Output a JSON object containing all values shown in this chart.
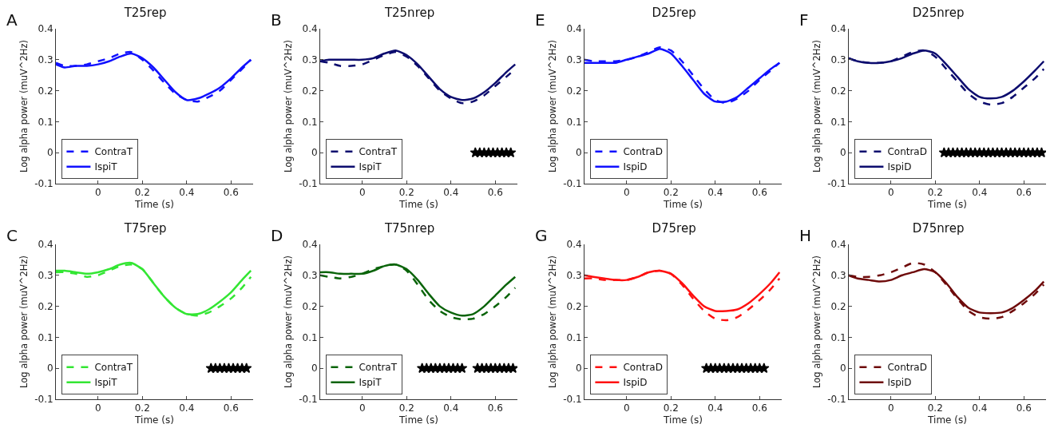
{
  "chart_data": [
    {
      "type": "line",
      "title": "T25rep",
      "annotations": [
        "A"
      ],
      "xlabel": "Time (s)",
      "ylabel": "Log alpha power (muV^2Hz)",
      "xlim": [
        -0.19,
        0.7
      ],
      "xticks": [
        0,
        0.2,
        0.4,
        0.6
      ],
      "ylim": [
        -0.1,
        0.4
      ],
      "yticks": [
        -0.1,
        0,
        0.1,
        0.2,
        0.3,
        0.4
      ],
      "legend": "bottom left",
      "x": [
        -0.19,
        -0.15,
        -0.1,
        -0.05,
        0,
        0.05,
        0.1,
        0.15,
        0.2,
        0.25,
        0.3,
        0.35,
        0.4,
        0.45,
        0.5,
        0.55,
        0.6,
        0.65,
        0.69
      ],
      "series": [
        {
          "name": "ContraT",
          "color": "#1010ff",
          "line_style": "dashed",
          "values": [
            0.29,
            0.28,
            0.28,
            0.285,
            0.295,
            0.305,
            0.32,
            0.325,
            0.3,
            0.265,
            0.225,
            0.19,
            0.17,
            0.165,
            0.18,
            0.2,
            0.235,
            0.27,
            0.3
          ]
        },
        {
          "name": "IspiT",
          "color": "#1010ff",
          "line_style": "solid",
          "values": [
            0.285,
            0.275,
            0.28,
            0.28,
            0.285,
            0.295,
            0.31,
            0.32,
            0.305,
            0.275,
            0.235,
            0.195,
            0.17,
            0.175,
            0.19,
            0.21,
            0.24,
            0.275,
            0.3
          ]
        }
      ]
    },
    {
      "type": "line",
      "title": "T25nrep",
      "annotations": [
        "B"
      ],
      "xlabel": "Time (s)",
      "ylabel": "Log alpha power (muV^2Hz)",
      "xlim": [
        -0.19,
        0.7
      ],
      "xticks": [
        0,
        0.2,
        0.4,
        0.6
      ],
      "ylim": [
        -0.1,
        0.4
      ],
      "yticks": [
        -0.1,
        0,
        0.1,
        0.2,
        0.3,
        0.4
      ],
      "legend": "bottom left",
      "x": [
        -0.19,
        -0.15,
        -0.1,
        -0.05,
        0,
        0.05,
        0.1,
        0.15,
        0.2,
        0.25,
        0.3,
        0.35,
        0.4,
        0.45,
        0.5,
        0.55,
        0.6,
        0.65,
        0.69
      ],
      "series": [
        {
          "name": "ContraT",
          "color": "#0c0c6e",
          "line_style": "dashed",
          "values": [
            0.295,
            0.29,
            0.28,
            0.28,
            0.285,
            0.3,
            0.315,
            0.325,
            0.31,
            0.28,
            0.24,
            0.2,
            0.175,
            0.16,
            0.165,
            0.185,
            0.215,
            0.245,
            0.27
          ]
        },
        {
          "name": "IspiT",
          "color": "#0c0c6e",
          "line_style": "solid",
          "values": [
            0.295,
            0.3,
            0.3,
            0.3,
            0.3,
            0.305,
            0.32,
            0.33,
            0.315,
            0.285,
            0.245,
            0.205,
            0.18,
            0.17,
            0.175,
            0.195,
            0.225,
            0.26,
            0.285
          ]
        },
        {
          "type": "scatter",
          "marker": "star",
          "color": "#000000",
          "x": [
            0.51,
            0.53,
            0.55,
            0.57,
            0.59,
            0.61,
            0.63,
            0.65,
            0.67
          ],
          "values": [
            0,
            0,
            0,
            0,
            0,
            0,
            0,
            0,
            0
          ]
        }
      ]
    },
    {
      "type": "line",
      "title": "D25rep",
      "annotations": [
        "E"
      ],
      "xlabel": "Time (s)",
      "ylabel": "Log alpha power (muV^2Hz)",
      "xlim": [
        -0.19,
        0.7
      ],
      "xticks": [
        0,
        0.2,
        0.4,
        0.6
      ],
      "ylim": [
        -0.1,
        0.4
      ],
      "yticks": [
        -0.1,
        0,
        0.1,
        0.2,
        0.3,
        0.4
      ],
      "legend": "bottom left",
      "x": [
        -0.19,
        -0.15,
        -0.1,
        -0.05,
        0,
        0.05,
        0.1,
        0.15,
        0.2,
        0.25,
        0.3,
        0.35,
        0.4,
        0.45,
        0.5,
        0.55,
        0.6,
        0.65,
        0.69
      ],
      "series": [
        {
          "name": "ContraD",
          "color": "#1010ff",
          "line_style": "dashed",
          "values": [
            0.3,
            0.295,
            0.295,
            0.295,
            0.3,
            0.31,
            0.325,
            0.34,
            0.33,
            0.295,
            0.25,
            0.205,
            0.17,
            0.16,
            0.175,
            0.2,
            0.235,
            0.265,
            0.29
          ]
        },
        {
          "name": "IspiD",
          "color": "#1010ff",
          "line_style": "solid",
          "values": [
            0.29,
            0.29,
            0.29,
            0.29,
            0.3,
            0.31,
            0.32,
            0.335,
            0.32,
            0.28,
            0.235,
            0.19,
            0.165,
            0.165,
            0.18,
            0.21,
            0.24,
            0.27,
            0.29
          ]
        }
      ]
    },
    {
      "type": "line",
      "title": "D25nrep",
      "annotations": [
        "F"
      ],
      "xlabel": "Time (s)",
      "ylabel": "Log alpha power (muV^2Hz)",
      "xlim": [
        -0.19,
        0.7
      ],
      "xticks": [
        0,
        0.2,
        0.4,
        0.6
      ],
      "ylim": [
        -0.1,
        0.4
      ],
      "yticks": [
        -0.1,
        0,
        0.1,
        0.2,
        0.3,
        0.4
      ],
      "legend": "bottom left",
      "x": [
        -0.19,
        -0.15,
        -0.1,
        -0.05,
        0,
        0.05,
        0.1,
        0.15,
        0.2,
        0.25,
        0.3,
        0.35,
        0.4,
        0.45,
        0.5,
        0.55,
        0.6,
        0.65,
        0.69
      ],
      "series": [
        {
          "name": "ContraD",
          "color": "#0c0c6e",
          "line_style": "dashed",
          "values": [
            0.305,
            0.295,
            0.29,
            0.29,
            0.295,
            0.31,
            0.325,
            0.33,
            0.31,
            0.27,
            0.23,
            0.19,
            0.165,
            0.155,
            0.16,
            0.18,
            0.21,
            0.24,
            0.27
          ]
        },
        {
          "name": "IspiD",
          "color": "#0c0c6e",
          "line_style": "solid",
          "values": [
            0.305,
            0.295,
            0.29,
            0.29,
            0.295,
            0.305,
            0.32,
            0.33,
            0.32,
            0.285,
            0.245,
            0.205,
            0.18,
            0.175,
            0.18,
            0.2,
            0.23,
            0.265,
            0.295
          ]
        },
        {
          "type": "scatter",
          "marker": "star",
          "color": "#000000",
          "x": [
            0.24,
            0.26,
            0.28,
            0.3,
            0.32,
            0.34,
            0.36,
            0.38,
            0.4,
            0.42,
            0.44,
            0.46,
            0.48,
            0.5,
            0.52,
            0.54,
            0.56,
            0.58,
            0.6,
            0.62,
            0.64,
            0.66,
            0.68
          ],
          "values": [
            0,
            0,
            0,
            0,
            0,
            0,
            0,
            0,
            0,
            0,
            0,
            0,
            0,
            0,
            0,
            0,
            0,
            0,
            0,
            0,
            0,
            0,
            0
          ]
        }
      ]
    },
    {
      "type": "line",
      "title": "T75rep",
      "annotations": [
        "C"
      ],
      "xlabel": "Time (s)",
      "ylabel": "Log alpha power (muV^2Hz)",
      "xlim": [
        -0.19,
        0.7
      ],
      "xticks": [
        0,
        0.2,
        0.4,
        0.6
      ],
      "ylim": [
        -0.1,
        0.4
      ],
      "yticks": [
        -0.1,
        0,
        0.1,
        0.2,
        0.3,
        0.4
      ],
      "legend": "bottom left",
      "x": [
        -0.19,
        -0.15,
        -0.1,
        -0.05,
        0,
        0.05,
        0.1,
        0.15,
        0.2,
        0.25,
        0.3,
        0.35,
        0.4,
        0.45,
        0.5,
        0.55,
        0.6,
        0.65,
        0.69
      ],
      "series": [
        {
          "name": "ContraT",
          "color": "#33e633",
          "line_style": "dashed",
          "values": [
            0.31,
            0.31,
            0.305,
            0.295,
            0.3,
            0.315,
            0.33,
            0.335,
            0.32,
            0.275,
            0.23,
            0.195,
            0.175,
            0.17,
            0.18,
            0.2,
            0.225,
            0.26,
            0.295
          ]
        },
        {
          "name": "IspiT",
          "color": "#33e633",
          "line_style": "solid",
          "values": [
            0.315,
            0.315,
            0.31,
            0.305,
            0.31,
            0.32,
            0.335,
            0.34,
            0.32,
            0.275,
            0.23,
            0.195,
            0.175,
            0.175,
            0.19,
            0.215,
            0.245,
            0.285,
            0.315
          ]
        },
        {
          "type": "scatter",
          "marker": "star",
          "color": "#000000",
          "x": [
            0.51,
            0.53,
            0.55,
            0.57,
            0.59,
            0.61,
            0.63,
            0.65,
            0.67
          ],
          "values": [
            0,
            0,
            0,
            0,
            0,
            0,
            0,
            0,
            0
          ]
        }
      ]
    },
    {
      "type": "line",
      "title": "T75nrep",
      "annotations": [
        "D"
      ],
      "xlabel": "Time (s)",
      "ylabel": "Log alpha power (muV^2Hz)",
      "xlim": [
        -0.19,
        0.7
      ],
      "xticks": [
        0,
        0.2,
        0.4,
        0.6
      ],
      "ylim": [
        -0.1,
        0.4
      ],
      "yticks": [
        -0.1,
        0,
        0.1,
        0.2,
        0.3,
        0.4
      ],
      "legend": "bottom left",
      "x": [
        -0.19,
        -0.15,
        -0.1,
        -0.05,
        0,
        0.05,
        0.1,
        0.15,
        0.2,
        0.25,
        0.3,
        0.35,
        0.4,
        0.45,
        0.5,
        0.55,
        0.6,
        0.65,
        0.69
      ],
      "series": [
        {
          "name": "ContraT",
          "color": "#0a640a",
          "line_style": "dashed",
          "values": [
            0.3,
            0.295,
            0.29,
            0.295,
            0.305,
            0.32,
            0.33,
            0.335,
            0.315,
            0.27,
            0.22,
            0.185,
            0.165,
            0.158,
            0.16,
            0.175,
            0.2,
            0.23,
            0.26
          ]
        },
        {
          "name": "IspiT",
          "color": "#0a640a",
          "line_style": "solid",
          "values": [
            0.31,
            0.31,
            0.305,
            0.305,
            0.305,
            0.315,
            0.33,
            0.335,
            0.32,
            0.285,
            0.24,
            0.2,
            0.18,
            0.17,
            0.175,
            0.2,
            0.235,
            0.27,
            0.295
          ]
        },
        {
          "type": "scatter",
          "marker": "star",
          "color": "#000000",
          "x": [
            0.27,
            0.29,
            0.31,
            0.33,
            0.35,
            0.37,
            0.39,
            0.41,
            0.43,
            0.45,
            0.52,
            0.54,
            0.56,
            0.58,
            0.6,
            0.62,
            0.64,
            0.66,
            0.68
          ],
          "values": [
            0,
            0,
            0,
            0,
            0,
            0,
            0,
            0,
            0,
            0,
            0,
            0,
            0,
            0,
            0,
            0,
            0,
            0,
            0
          ]
        }
      ]
    },
    {
      "type": "line",
      "title": "D75rep",
      "annotations": [
        "G"
      ],
      "xlabel": "Time (s)",
      "ylabel": "Log alpha power (muV^2Hz)",
      "xlim": [
        -0.19,
        0.7
      ],
      "xticks": [
        0,
        0.2,
        0.4,
        0.6
      ],
      "ylim": [
        -0.1,
        0.4
      ],
      "yticks": [
        -0.1,
        0,
        0.1,
        0.2,
        0.3,
        0.4
      ],
      "legend": "bottom left",
      "x": [
        -0.19,
        -0.15,
        -0.1,
        -0.05,
        0,
        0.05,
        0.1,
        0.15,
        0.2,
        0.25,
        0.3,
        0.35,
        0.4,
        0.45,
        0.5,
        0.55,
        0.6,
        0.65,
        0.69
      ],
      "series": [
        {
          "name": "ContraD",
          "color": "#ff1010",
          "line_style": "dashed",
          "values": [
            0.29,
            0.29,
            0.285,
            0.285,
            0.285,
            0.295,
            0.31,
            0.315,
            0.305,
            0.27,
            0.225,
            0.185,
            0.16,
            0.155,
            0.165,
            0.19,
            0.22,
            0.255,
            0.29
          ]
        },
        {
          "name": "IspiD",
          "color": "#ff1010",
          "line_style": "solid",
          "values": [
            0.3,
            0.295,
            0.29,
            0.285,
            0.285,
            0.295,
            0.31,
            0.315,
            0.305,
            0.275,
            0.235,
            0.2,
            0.185,
            0.185,
            0.19,
            0.21,
            0.24,
            0.275,
            0.31
          ]
        },
        {
          "type": "scatter",
          "marker": "star",
          "color": "#000000",
          "x": [
            0.36,
            0.38,
            0.4,
            0.42,
            0.44,
            0.46,
            0.48,
            0.5,
            0.52,
            0.54,
            0.56,
            0.58,
            0.6,
            0.62
          ],
          "values": [
            0,
            0,
            0,
            0,
            0,
            0,
            0,
            0,
            0,
            0,
            0,
            0,
            0,
            0
          ]
        }
      ]
    },
    {
      "type": "line",
      "title": "D75nrep",
      "annotations": [
        "H"
      ],
      "xlabel": "Time (s)",
      "ylabel": "Log alpha power (muV^2Hz)",
      "xlim": [
        -0.19,
        0.7
      ],
      "xticks": [
        0,
        0.2,
        0.4,
        0.6
      ],
      "ylim": [
        -0.1,
        0.4
      ],
      "yticks": [
        -0.1,
        0,
        0.1,
        0.2,
        0.3,
        0.4
      ],
      "legend": "bottom left",
      "x": [
        -0.19,
        -0.15,
        -0.1,
        -0.05,
        0,
        0.05,
        0.1,
        0.15,
        0.2,
        0.25,
        0.3,
        0.35,
        0.4,
        0.45,
        0.5,
        0.55,
        0.6,
        0.65,
        0.69
      ],
      "series": [
        {
          "name": "ContraD",
          "color": "#6e0a0a",
          "line_style": "dashed",
          "values": [
            0.3,
            0.295,
            0.295,
            0.3,
            0.31,
            0.325,
            0.34,
            0.335,
            0.31,
            0.27,
            0.225,
            0.185,
            0.165,
            0.16,
            0.165,
            0.185,
            0.21,
            0.24,
            0.27
          ]
        },
        {
          "name": "IspiD",
          "color": "#6e0a0a",
          "line_style": "solid",
          "values": [
            0.3,
            0.29,
            0.285,
            0.28,
            0.285,
            0.3,
            0.31,
            0.32,
            0.31,
            0.275,
            0.23,
            0.195,
            0.18,
            0.178,
            0.18,
            0.195,
            0.22,
            0.25,
            0.28
          ]
        }
      ]
    }
  ]
}
